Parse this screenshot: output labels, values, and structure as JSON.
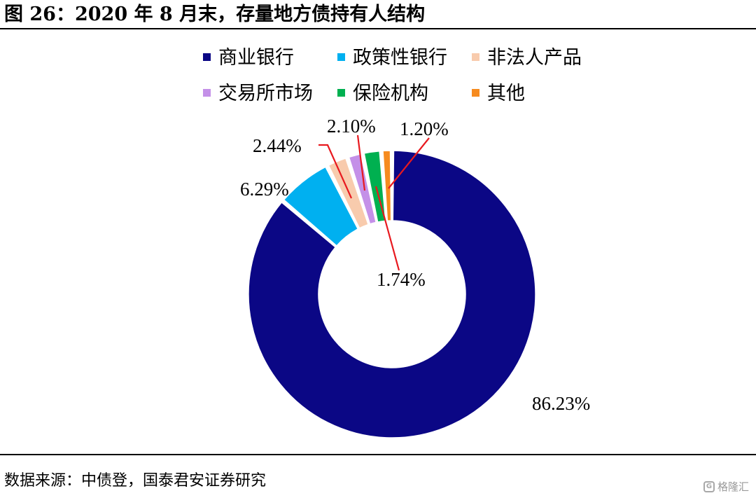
{
  "title": "图 26：2020 年 8 月末，存量地方债持有人结构",
  "source": "数据来源：中债登，国泰君安证券研究",
  "watermark": {
    "text": "格隆汇",
    "icon": "gelonghui-logo-icon"
  },
  "chart_data": {
    "type": "pie",
    "donut": true,
    "title": "",
    "categories": [
      "商业银行",
      "政策性银行",
      "非法人产品",
      "交易所市场",
      "保险机构",
      "其他"
    ],
    "values": [
      86.23,
      6.29,
      2.44,
      1.74,
      2.1,
      1.2
    ],
    "value_labels": [
      "86.23%",
      "6.29%",
      "2.44%",
      "1.74%",
      "2.10%",
      "1.20%"
    ],
    "colors": [
      "#0b0785",
      "#00b0f0",
      "#f8cbad",
      "#c490e8",
      "#00b050",
      "#f68b1f"
    ],
    "start_angle": "12 o'clock",
    "direction": "clockwise",
    "legend_position": "top",
    "leader_line_color": "#e8191f"
  }
}
